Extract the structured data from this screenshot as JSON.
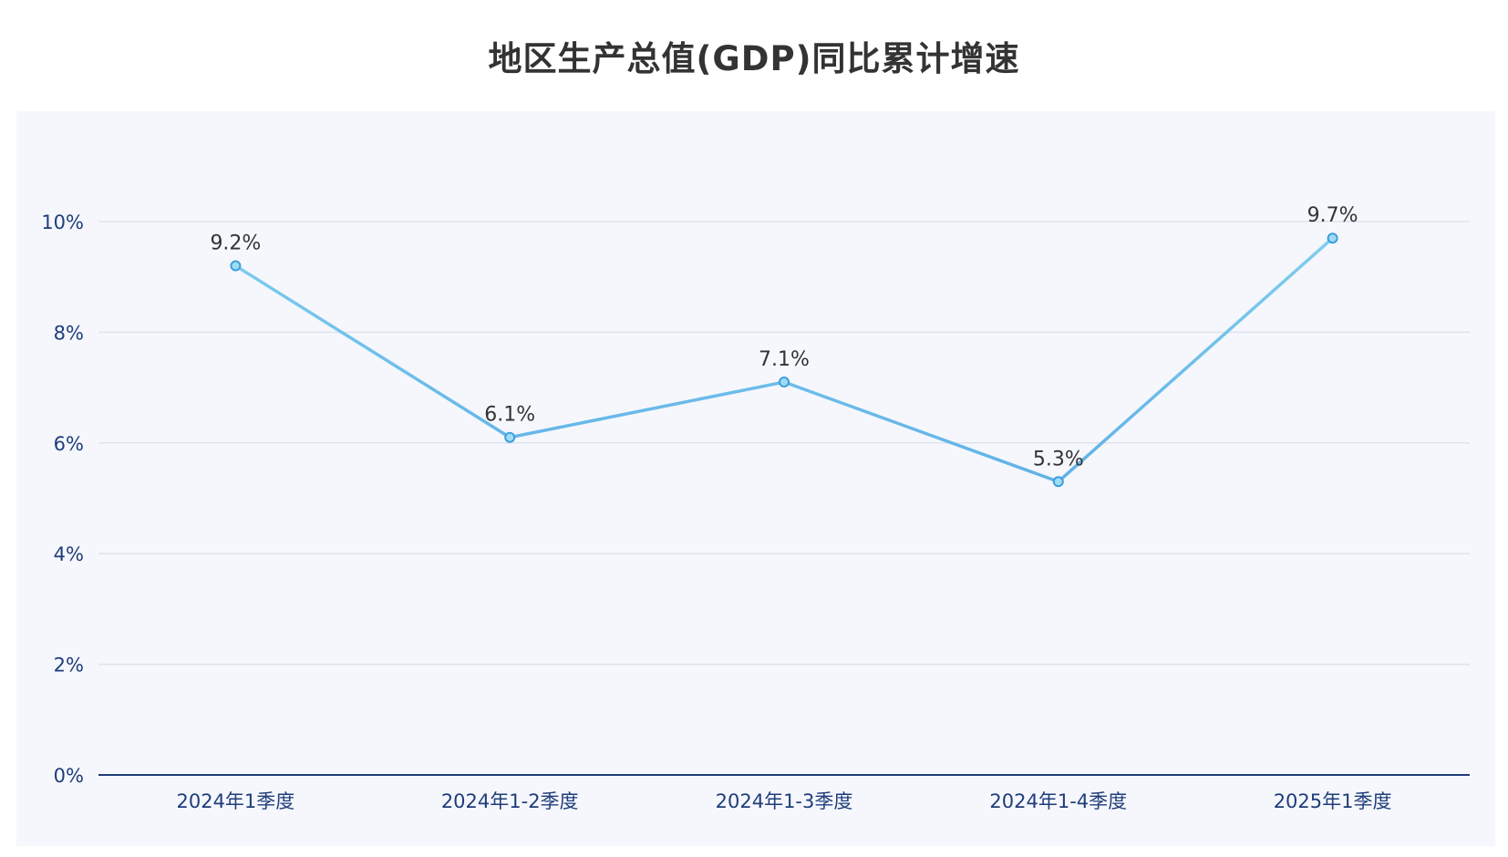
{
  "chart_data": {
    "type": "line",
    "title": "地区生产总值(GDP)同比累计增速",
    "categories": [
      "2024年1季度",
      "2024年1-2季度",
      "2024年1-3季度",
      "2024年1-4季度",
      "2025年1季度"
    ],
    "series": [
      {
        "values": [
          9.2,
          6.1,
          7.1,
          5.3,
          9.7
        ],
        "labels": [
          "9.2%",
          "6.1%",
          "7.1%",
          "5.3%",
          "9.7%"
        ]
      }
    ],
    "ylim": [
      0,
      10
    ],
    "yticks": [
      0,
      2,
      4,
      6,
      8,
      10
    ],
    "ytick_labels": [
      "0%",
      "2%",
      "4%",
      "6%",
      "8%",
      "10%"
    ],
    "grid": true,
    "xlabel": "",
    "ylabel": ""
  },
  "colors": {
    "line_start": "#82cfee",
    "line_mid": "#5aade6",
    "marker_fill": "#9fdcf3",
    "marker_stroke": "#3d9fdc",
    "grid": "#dde3ee",
    "axis": "#1f3d7a",
    "panel_bg": "#f5f7fc"
  }
}
